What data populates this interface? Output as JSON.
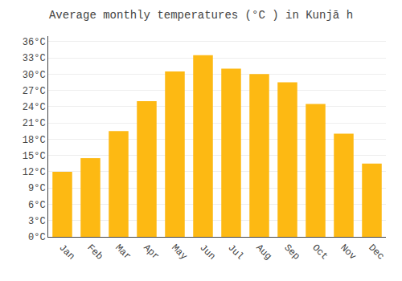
{
  "chart_data": {
    "type": "bar",
    "title": "Average monthly temperatures (°C ) in Kunjā h",
    "categories": [
      "Jan",
      "Feb",
      "Mar",
      "Apr",
      "May",
      "Jun",
      "Jul",
      "Aug",
      "Sep",
      "Oct",
      "Nov",
      "Dec"
    ],
    "values": [
      12,
      14.5,
      19.5,
      25,
      30.5,
      33.5,
      31,
      30,
      28.5,
      24.5,
      19,
      13.5
    ],
    "color": "#FDB913",
    "ylim": [
      0,
      37
    ],
    "yticks": [
      {
        "value": 0,
        "label": "0°C"
      },
      {
        "value": 3,
        "label": "3°C"
      },
      {
        "value": 6,
        "label": "6°C"
      },
      {
        "value": 9,
        "label": "9°C"
      },
      {
        "value": 12,
        "label": "12°C"
      },
      {
        "value": 15,
        "label": "15°C"
      },
      {
        "value": 18,
        "label": "18°C"
      },
      {
        "value": 21,
        "label": "21°C"
      },
      {
        "value": 24,
        "label": "24°C"
      },
      {
        "value": 27,
        "label": "27°C"
      },
      {
        "value": 30,
        "label": "30°C"
      },
      {
        "value": 33,
        "label": "33°C"
      },
      {
        "value": 36,
        "label": "36°C"
      }
    ],
    "grid": true
  }
}
